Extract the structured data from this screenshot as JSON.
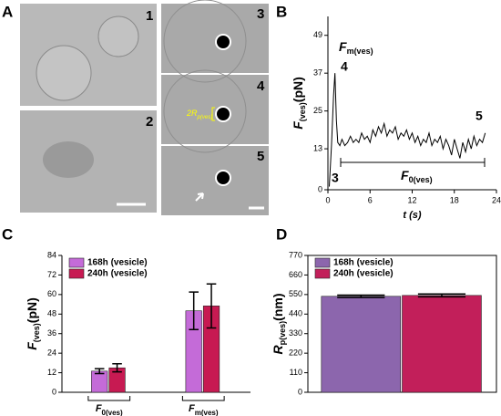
{
  "panel_labels": [
    "A",
    "B",
    "C",
    "D"
  ],
  "images": {
    "labels": [
      "1",
      "2",
      "3",
      "4",
      "5"
    ],
    "annotation": "2R",
    "annotation_sub": "p(ves)"
  },
  "chart_data": [
    {
      "type": "line",
      "y_label": "F",
      "y_label_sub": "(ves)",
      "y_label_unit": "(pN)",
      "x_label": "t (s)",
      "x": [
        0.2,
        0.5,
        0.8,
        1.0,
        1.2,
        1.4,
        1.7,
        2.0,
        2.4,
        2.8,
        3.2,
        3.6,
        4.0,
        4.4,
        4.8,
        5.2,
        5.6,
        6.0,
        6.4,
        6.8,
        7.2,
        7.6,
        8.0,
        8.4,
        8.8,
        9.2,
        9.6,
        10.0,
        10.4,
        10.8,
        11.2,
        11.6,
        12.0,
        12.4,
        12.8,
        13.2,
        13.6,
        14.0,
        14.4,
        14.8,
        15.2,
        15.6,
        16.0,
        16.4,
        16.8,
        17.2,
        17.6,
        18.0,
        18.4,
        18.8,
        19.2,
        19.6,
        20.0,
        20.4,
        20.8,
        21.2,
        21.6,
        22.0,
        22.4
      ],
      "values": [
        1,
        14,
        30,
        37,
        22,
        15,
        14,
        16,
        14,
        15,
        17,
        15,
        16,
        15,
        18,
        16,
        17,
        15,
        19,
        17,
        20,
        18,
        21,
        17,
        19,
        18,
        20,
        16,
        18,
        17,
        19,
        16,
        18,
        15,
        17,
        14,
        16,
        15,
        18,
        14,
        16,
        15,
        17,
        13,
        16,
        14,
        11,
        16,
        13,
        10,
        15,
        12,
        16,
        13,
        17,
        14,
        16,
        15,
        18
      ],
      "color": "#000000",
      "xlim": [
        0,
        24
      ],
      "xticks": [
        0,
        6,
        12,
        18,
        24
      ],
      "ylim": [
        0,
        55
      ],
      "yticks": [
        0,
        13,
        25,
        37,
        49
      ],
      "peak_label": "F",
      "peak_label_sub": "m(ves)",
      "marker_labels": [
        "3",
        "4",
        "5"
      ],
      "range_label": "F",
      "range_label_sub": "0(ves)"
    },
    {
      "type": "bar",
      "y_label": "F",
      "y_label_sub": "(ves)",
      "y_label_unit": "(pN)",
      "categories": [
        "F",
        "F"
      ],
      "category_subs": [
        "0(ves)",
        "m(ves)"
      ],
      "series": [
        {
          "name": "168h (vesicle)",
          "color": "#c46bd8",
          "values": [
            13,
            50
          ],
          "errors": [
            1.5,
            11.5
          ]
        },
        {
          "name": "240h (vesicle)",
          "color": "#c71a52",
          "values": [
            15,
            53
          ],
          "errors": [
            2.5,
            13.5
          ]
        }
      ],
      "ylim": [
        0,
        84
      ],
      "yticks": [
        0,
        12,
        24,
        36,
        48,
        60,
        72,
        84
      ],
      "legend": "upper left"
    },
    {
      "type": "bar",
      "y_label": "R",
      "y_label_sub": "p(ves)",
      "y_label_unit": "(nm)",
      "series": [
        {
          "name": "168h (vesicle)",
          "color": "#8c66ad",
          "values": [
            540
          ],
          "errors": [
            7
          ]
        },
        {
          "name": "240h (vesicle)",
          "color": "#c21f5a",
          "values": [
            545
          ],
          "errors": [
            8
          ]
        }
      ],
      "ylim": [
        0,
        770
      ],
      "yticks": [
        0,
        110,
        220,
        330,
        440,
        550,
        660,
        770
      ],
      "legend": "upper left"
    }
  ]
}
